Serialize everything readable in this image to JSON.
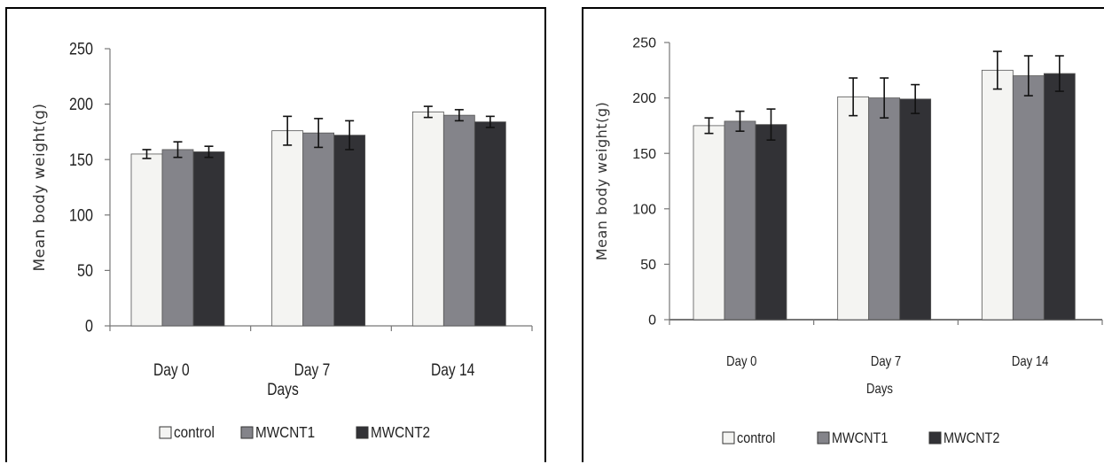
{
  "colors": {
    "control": "#f4f4f2",
    "MWCNT1": "#84848a",
    "MWCNT2": "#323236",
    "axis": "#777777",
    "panel_border": "#000000",
    "error_bar": "#111111"
  },
  "chart_data": [
    {
      "type": "bar",
      "title": "",
      "xlabel": "Days",
      "ylabel": "Mean body weight(g)",
      "ylim": [
        0,
        250
      ],
      "yticks": [
        0,
        50,
        100,
        150,
        200,
        250
      ],
      "grid": false,
      "legend_position": "bottom",
      "categories": [
        "Day 0",
        "Day 7",
        "Day 14"
      ],
      "series": [
        {
          "name": "control",
          "values": [
            155,
            176,
            193
          ],
          "errors": [
            4,
            13,
            5
          ]
        },
        {
          "name": "MWCNT1",
          "values": [
            159,
            174,
            190
          ],
          "errors": [
            7,
            13,
            5
          ]
        },
        {
          "name": "MWCNT2",
          "values": [
            157,
            172,
            184
          ],
          "errors": [
            5,
            13,
            5
          ]
        }
      ]
    },
    {
      "type": "bar",
      "title": "",
      "xlabel": "Days",
      "ylabel": "Mean body weight(g)",
      "ylim": [
        0,
        250
      ],
      "yticks": [
        0,
        50,
        100,
        150,
        200,
        250
      ],
      "grid": false,
      "legend_position": "bottom",
      "categories": [
        "Day 0",
        "Day 7",
        "Day 14"
      ],
      "series": [
        {
          "name": "control",
          "values": [
            175,
            201,
            225
          ],
          "errors": [
            7,
            17,
            17
          ]
        },
        {
          "name": "MWCNT1",
          "values": [
            179,
            200,
            220
          ],
          "errors": [
            9,
            18,
            18
          ]
        },
        {
          "name": "MWCNT2",
          "values": [
            176,
            199,
            222
          ],
          "errors": [
            14,
            13,
            16
          ]
        }
      ]
    }
  ]
}
